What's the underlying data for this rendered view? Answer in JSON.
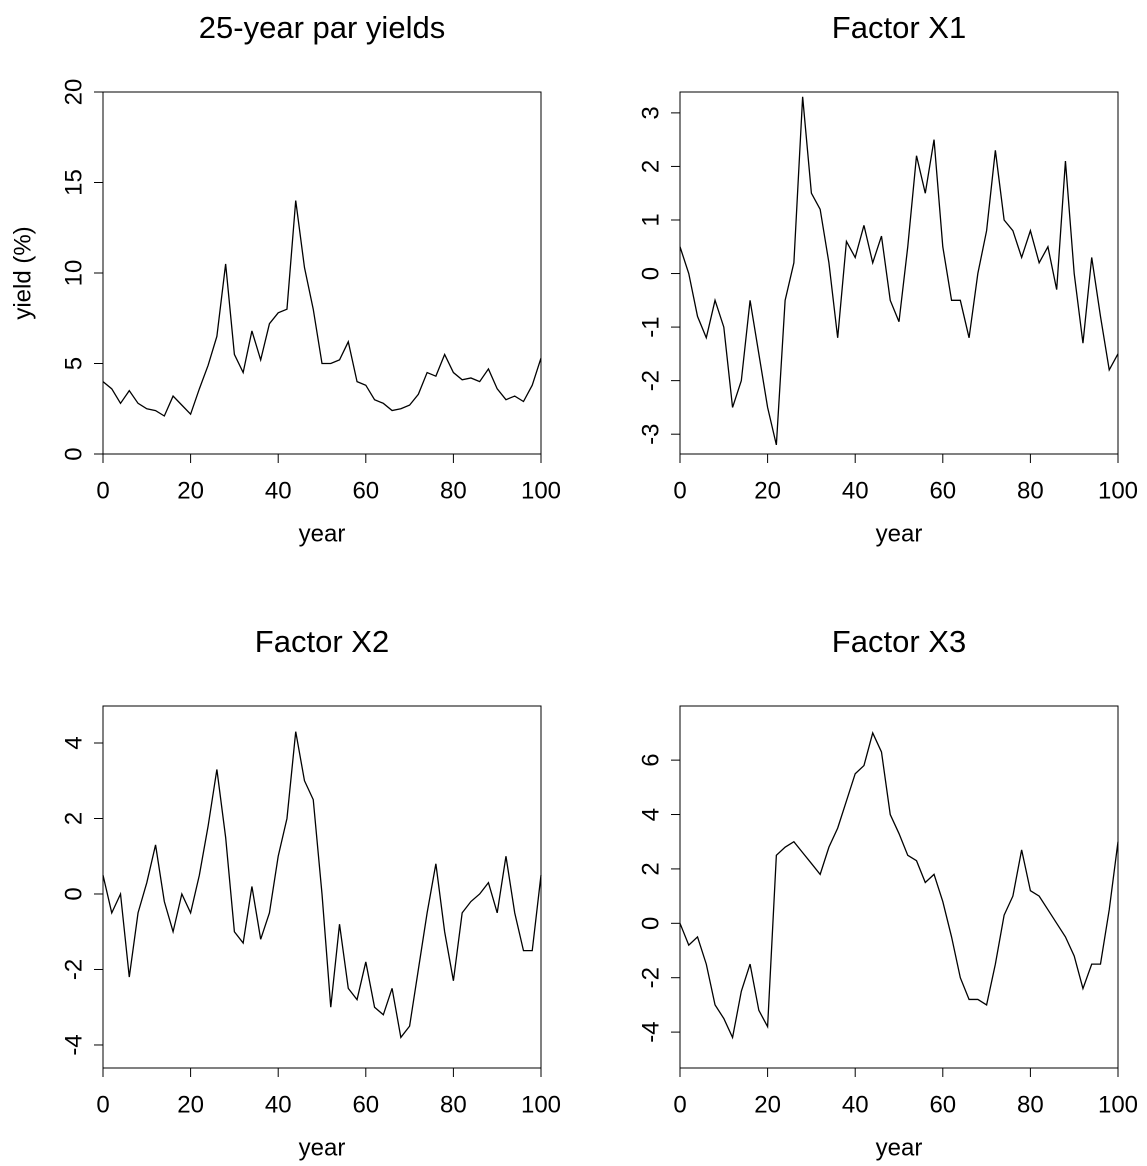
{
  "chart_data": [
    {
      "type": "line",
      "title": "25-year par yields",
      "xlabel": "year",
      "ylabel": "yield (%)",
      "color": "#000000",
      "x": [
        0,
        2,
        4,
        6,
        8,
        10,
        12,
        14,
        16,
        18,
        20,
        22,
        24,
        26,
        28,
        30,
        32,
        34,
        36,
        38,
        40,
        42,
        44,
        46,
        48,
        50,
        52,
        54,
        56,
        58,
        60,
        62,
        64,
        66,
        68,
        70,
        72,
        74,
        76,
        78,
        80,
        82,
        84,
        86,
        88,
        90,
        92,
        94,
        96,
        98,
        100
      ],
      "values": [
        4.0,
        3.6,
        2.8,
        3.5,
        2.8,
        2.5,
        2.4,
        2.1,
        3.2,
        2.7,
        2.2,
        3.6,
        4.9,
        6.5,
        10.5,
        5.5,
        4.5,
        6.8,
        5.2,
        7.2,
        7.8,
        8.0,
        14.0,
        10.3,
        8.0,
        5.0,
        5.0,
        5.2,
        6.2,
        4.0,
        3.8,
        3.0,
        2.8,
        2.4,
        2.5,
        2.7,
        3.3,
        4.5,
        4.3,
        5.5,
        4.5,
        4.1,
        4.2,
        4.0,
        4.7,
        3.6,
        3.0,
        3.2,
        2.9,
        3.8,
        5.3
      ],
      "xlim": [
        0,
        100
      ],
      "xticks": [
        0,
        20,
        40,
        60,
        80,
        100
      ],
      "ylim": [
        0,
        20
      ],
      "yticks": [
        0,
        5,
        10,
        15,
        20
      ]
    },
    {
      "type": "line",
      "title": "Factor X1",
      "xlabel": "year",
      "color": "#000000",
      "x": [
        0,
        2,
        4,
        6,
        8,
        10,
        12,
        14,
        16,
        18,
        20,
        22,
        24,
        26,
        28,
        30,
        32,
        34,
        36,
        38,
        40,
        42,
        44,
        46,
        48,
        50,
        52,
        54,
        56,
        58,
        60,
        62,
        64,
        66,
        68,
        70,
        72,
        74,
        76,
        78,
        80,
        82,
        84,
        86,
        88,
        90,
        92,
        94,
        96,
        98,
        100
      ],
      "values": [
        0.5,
        0,
        -0.8,
        -1.2,
        -0.5,
        -1.0,
        -2.5,
        -2.0,
        -0.5,
        -1.5,
        -2.5,
        -3.2,
        -0.5,
        0.2,
        3.3,
        1.5,
        1.2,
        0.2,
        -1.2,
        0.6,
        0.3,
        0.9,
        0.2,
        0.7,
        -0.5,
        -0.9,
        0.5,
        2.2,
        1.5,
        2.5,
        0.5,
        -0.5,
        -0.5,
        -1.2,
        0,
        0.8,
        2.3,
        1.0,
        0.8,
        0.3,
        0.8,
        0.2,
        0.5,
        -0.3,
        2.1,
        0,
        -1.3,
        0.3,
        -0.8,
        -1.8,
        -1.5
      ],
      "xlim": [
        0,
        100
      ],
      "xticks": [
        0,
        20,
        40,
        60,
        80,
        100
      ],
      "ylim": [
        -3.37,
        3.39
      ],
      "yticks": [
        -3,
        -2,
        -1,
        0,
        1,
        2,
        3
      ]
    },
    {
      "type": "line",
      "title": "Factor X2",
      "xlabel": "year",
      "color": "#000000",
      "x": [
        0,
        2,
        4,
        6,
        8,
        10,
        12,
        14,
        16,
        18,
        20,
        22,
        24,
        26,
        28,
        30,
        32,
        34,
        36,
        38,
        40,
        42,
        44,
        46,
        48,
        50,
        52,
        54,
        56,
        58,
        60,
        62,
        64,
        66,
        68,
        70,
        72,
        74,
        76,
        78,
        80,
        82,
        84,
        86,
        88,
        90,
        92,
        94,
        96,
        98,
        100
      ],
      "values": [
        0.5,
        -0.5,
        0,
        -2.2,
        -0.5,
        0.3,
        1.3,
        -0.2,
        -1.0,
        0,
        -0.5,
        0.5,
        1.8,
        3.3,
        1.5,
        -1.0,
        -1.3,
        0.2,
        -1.2,
        -0.5,
        1.0,
        2.0,
        4.3,
        3.0,
        2.5,
        0,
        -3.0,
        -0.8,
        -2.5,
        -2.8,
        -1.8,
        -3.0,
        -3.2,
        -2.5,
        -3.8,
        -3.5,
        -2.0,
        -0.5,
        0.8,
        -1.0,
        -2.3,
        -0.5,
        -0.2,
        0,
        0.3,
        -0.5,
        1.0,
        -0.5,
        -1.5,
        -1.5,
        0.5
      ],
      "xlim": [
        0,
        100
      ],
      "xticks": [
        0,
        20,
        40,
        60,
        80,
        100
      ],
      "ylim": [
        -4.61,
        4.98
      ],
      "yticks": [
        -4,
        -2,
        0,
        2,
        4
      ]
    },
    {
      "type": "line",
      "title": "Factor X3",
      "xlabel": "year",
      "color": "#000000",
      "x": [
        0,
        2,
        4,
        6,
        8,
        10,
        12,
        14,
        16,
        18,
        20,
        22,
        24,
        26,
        28,
        30,
        32,
        34,
        36,
        38,
        40,
        42,
        44,
        46,
        48,
        50,
        52,
        54,
        56,
        58,
        60,
        62,
        64,
        66,
        68,
        70,
        72,
        74,
        76,
        78,
        80,
        82,
        84,
        86,
        88,
        90,
        92,
        94,
        96,
        98,
        100
      ],
      "values": [
        0,
        -0.8,
        -0.5,
        -1.5,
        -3,
        -3.5,
        -4.2,
        -2.5,
        -1.5,
        -3.2,
        -3.8,
        2.5,
        2.8,
        3.0,
        2.6,
        2.2,
        1.8,
        2.8,
        3.5,
        4.5,
        5.5,
        5.8,
        7.0,
        6.3,
        4.0,
        3.3,
        2.5,
        2.3,
        1.5,
        1.8,
        0.8,
        -0.5,
        -2.0,
        -2.8,
        -2.8,
        -3.0,
        -1.5,
        0.3,
        1.0,
        2.7,
        1.2,
        1.0,
        0.5,
        0,
        -0.5,
        -1.2,
        -2.4,
        -1.5,
        -1.5,
        0.5,
        3.0
      ],
      "xlim": [
        0,
        100
      ],
      "xticks": [
        0,
        20,
        40,
        60,
        80,
        100
      ],
      "ylim": [
        -5.32,
        7.99
      ],
      "yticks": [
        -4,
        -2,
        0,
        2,
        4,
        6
      ]
    }
  ]
}
